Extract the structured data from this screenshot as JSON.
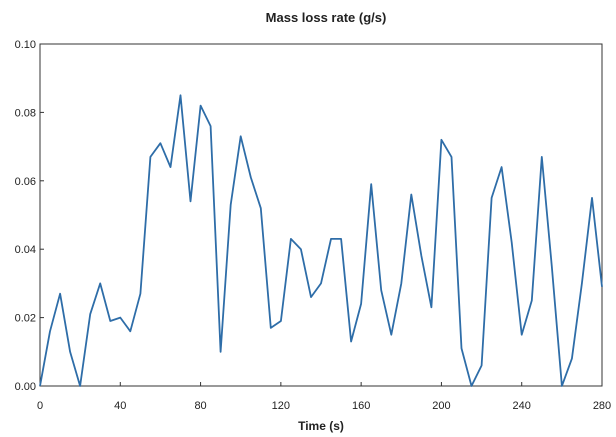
{
  "chart_data": {
    "type": "line",
    "title": "Mass loss rate (g/s)",
    "xlabel": "Time (s)",
    "ylabel": "",
    "xlim": [
      0,
      280
    ],
    "ylim": [
      0,
      0.1
    ],
    "grid": false,
    "xticks": [
      "0",
      "40",
      "80",
      "120",
      "160",
      "200",
      "240",
      "280"
    ],
    "yticks": [
      "0.00",
      "0.02",
      "0.04",
      "0.06",
      "0.08",
      "0.10"
    ],
    "series": [
      {
        "color": "#2e6da8",
        "x": [
          0,
          5,
          10,
          15,
          20,
          25,
          30,
          35,
          40,
          45,
          50,
          55,
          60,
          65,
          70,
          75,
          80,
          85,
          90,
          95,
          100,
          105,
          110,
          115,
          120,
          125,
          130,
          135,
          140,
          145,
          150,
          155,
          160,
          165,
          170,
          175,
          180,
          185,
          190,
          195,
          200,
          205,
          210,
          215,
          220,
          225,
          230,
          235,
          240,
          245,
          250,
          255,
          260,
          265,
          270,
          275,
          280
        ],
        "values": [
          0.0,
          0.016,
          0.027,
          0.01,
          0.0,
          0.021,
          0.03,
          0.019,
          0.02,
          0.016,
          0.027,
          0.067,
          0.071,
          0.064,
          0.085,
          0.054,
          0.082,
          0.076,
          0.01,
          0.053,
          0.073,
          0.061,
          0.052,
          0.017,
          0.019,
          0.043,
          0.04,
          0.026,
          0.03,
          0.043,
          0.043,
          0.013,
          0.024,
          0.059,
          0.028,
          0.015,
          0.03,
          0.056,
          0.038,
          0.023,
          0.072,
          0.067,
          0.011,
          0.0,
          0.006,
          0.055,
          0.064,
          0.042,
          0.015,
          0.025,
          0.067,
          0.035,
          0.0,
          0.008,
          0.03,
          0.055,
          0.029
        ]
      }
    ]
  }
}
